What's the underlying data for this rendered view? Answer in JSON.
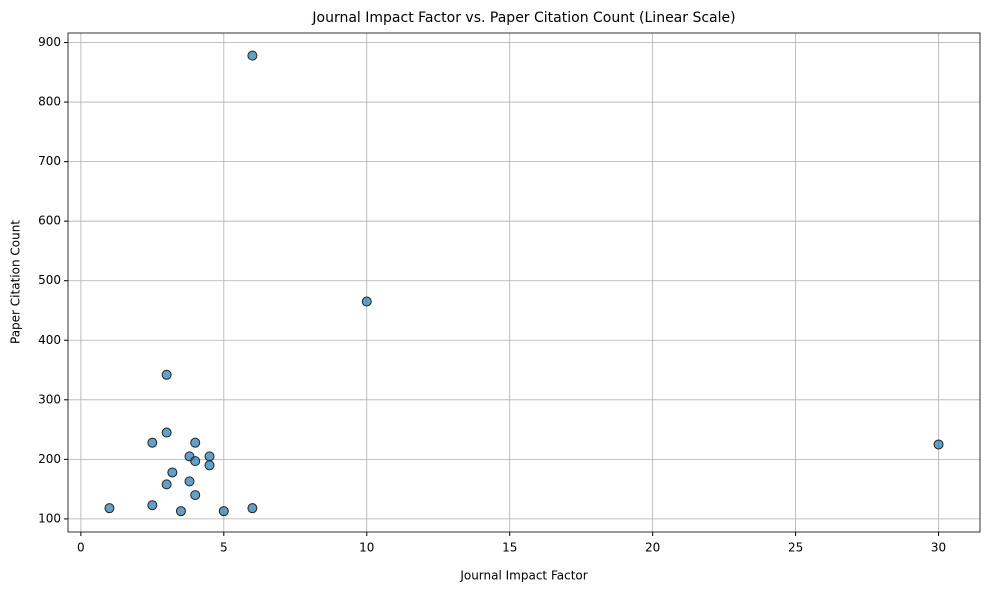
{
  "chart_data": {
    "type": "scatter",
    "title": "Journal Impact Factor vs. Paper Citation Count (Linear Scale)",
    "x_label": "Journal Impact Factor",
    "y_label": "Paper Citation Count",
    "x": [
      6,
      10,
      3,
      30,
      3,
      2.5,
      4,
      3.8,
      4.5,
      4,
      4.5,
      3.2,
      3.8,
      3,
      4,
      2.5,
      1,
      6,
      3.5,
      5
    ],
    "values": [
      878,
      465,
      342,
      225,
      245,
      228,
      228,
      205,
      205,
      197,
      190,
      178,
      163,
      158,
      140,
      123,
      118,
      118,
      113,
      113
    ],
    "color": "#1f77b4",
    "xlim": [
      -0.45,
      31.45
    ],
    "xticks": [
      0,
      5,
      10,
      15,
      20,
      25,
      30
    ],
    "ylim": [
      78,
      916
    ],
    "yticks": [
      100,
      200,
      300,
      400,
      500,
      600,
      700,
      800,
      900
    ],
    "grid": true
  }
}
